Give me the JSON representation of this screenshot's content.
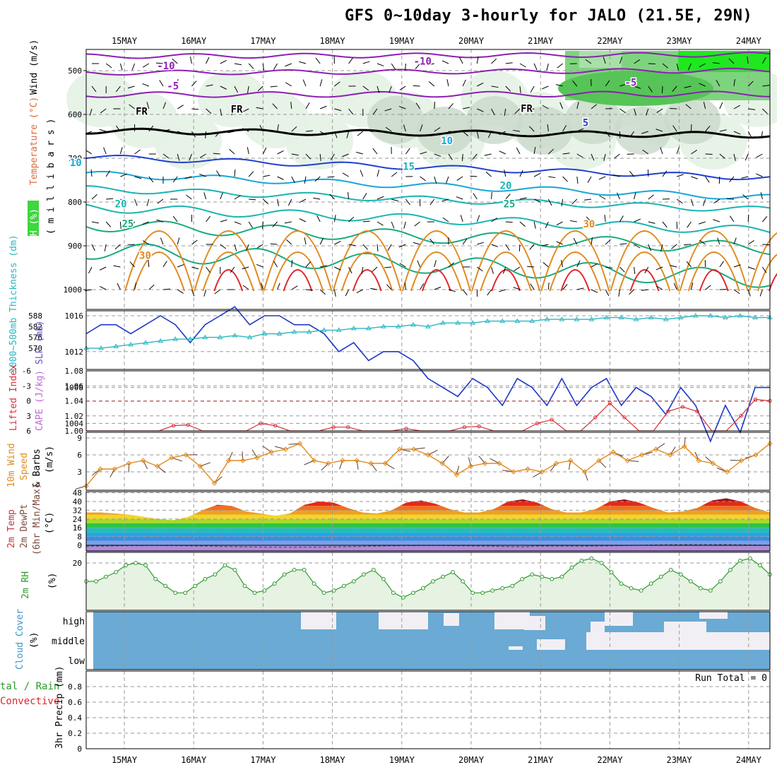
{
  "title": "GFS 0~10day 3-hourly for JALO (21.5E, 29N)",
  "dates": [
    "15MAY",
    "16MAY",
    "17MAY",
    "18MAY",
    "19MAY",
    "20MAY",
    "21MAY",
    "22MAY",
    "23MAY",
    "24MAY"
  ],
  "colors": {
    "purple": "#8c1fb4",
    "navy": "#1e3fd0",
    "cyan": "#18a6d8",
    "teal": "#19b4b4",
    "green_teal": "#18aa80",
    "orange": "#e08a1e",
    "red": "#e0262a",
    "slp": "#1d36c8",
    "thickness": "#2bb6c4",
    "li": "#d8303a",
    "wind10": "#e08a1e",
    "rh2m": "#2e9a2e",
    "cloud": "#6aaad4"
  },
  "chart_data": [
    {
      "type": "line",
      "panel": "upper-air",
      "ylabel_parts": [
        "RH (%)",
        "Temperature (°C)",
        "Wind (m/s)"
      ],
      "ylabel_units": "( m i l l i b a r s )",
      "y_ticks": [
        500,
        600,
        700,
        800,
        900,
        1000
      ],
      "ylim": [
        1000,
        450
      ],
      "contour_labels": [
        {
          "text": "-10",
          "day": 0.6,
          "p": 497,
          "color": "purple"
        },
        {
          "text": "-10",
          "day": 4.3,
          "p": 486,
          "color": "purple"
        },
        {
          "text": "-5",
          "day": 0.7,
          "p": 543,
          "color": "purple"
        },
        {
          "text": "-5",
          "day": 7.3,
          "p": 535,
          "color": "purple"
        },
        {
          "text": "FR",
          "day": 0.25,
          "p": 601,
          "color": "black"
        },
        {
          "text": "FR",
          "day": 1.62,
          "p": 596,
          "color": "black"
        },
        {
          "text": "FR",
          "day": 5.8,
          "p": 594,
          "color": "black"
        },
        {
          "text": "5",
          "day": -2.2,
          "p": 712,
          "color": "navy"
        },
        {
          "text": "5",
          "day": 6.65,
          "p": 627,
          "color": "navy"
        },
        {
          "text": "10",
          "day": -0.7,
          "p": 718,
          "color": "cyan"
        },
        {
          "text": "10",
          "day": 4.65,
          "p": 668,
          "color": "cyan"
        },
        {
          "text": "15",
          "day": 4.1,
          "p": 727,
          "color": "teal"
        },
        {
          "text": "20",
          "day": -0.05,
          "p": 812,
          "color": "teal"
        },
        {
          "text": "20",
          "day": 5.5,
          "p": 770,
          "color": "teal"
        },
        {
          "text": "25",
          "day": 0.05,
          "p": 857,
          "color": "green_teal"
        },
        {
          "text": "25",
          "day": 5.55,
          "p": 812,
          "color": "green_teal"
        },
        {
          "text": "30",
          "day": 0.3,
          "p": 930,
          "color": "orange"
        },
        {
          "text": "30",
          "day": 6.7,
          "p": 858,
          "color": "orange"
        }
      ]
    },
    {
      "type": "line",
      "panel": "slp-thickness",
      "ylabel_left": "1000~500mb Thickness (dm)",
      "ylabel_right": "SLP (mb)",
      "thickness_ticks": [
        570,
        576,
        582,
        588
      ],
      "slp_ticks": [
        1004,
        1008,
        1012,
        1016
      ],
      "slp": [
        1014,
        1015,
        1015,
        1014,
        1015,
        1016,
        1015,
        1013,
        1015,
        1016,
        1017,
        1015,
        1016,
        1016,
        1015,
        1015,
        1014,
        1012,
        1013,
        1011,
        1012,
        1012,
        1011,
        1009,
        1008,
        1007,
        1009,
        1008,
        1006,
        1009,
        1008,
        1006,
        1009,
        1006,
        1008,
        1009,
        1006,
        1008,
        1007,
        1005,
        1008,
        1006,
        1002,
        1006,
        1003,
        1008,
        1008
      ],
      "thickness": [
        570,
        570,
        571,
        572,
        573,
        574,
        575,
        575,
        576,
        576,
        577,
        576,
        578,
        578,
        579,
        579,
        580,
        580,
        581,
        581,
        582,
        582,
        583,
        582,
        584,
        584,
        584,
        585,
        585,
        585,
        585,
        586,
        586,
        586,
        586,
        587,
        587,
        586,
        587,
        586,
        587,
        588,
        588,
        587,
        588,
        587,
        587
      ]
    },
    {
      "type": "line",
      "panel": "stability",
      "ylabel_left": "Lifted Index",
      "ylabel_right": "CAPE (J/kg)",
      "li_ticks": [
        6,
        3,
        0,
        -3,
        -6
      ],
      "cape_ticks": [
        1.0,
        1.02,
        1.04,
        1.06,
        1.08
      ],
      "cape": [
        1.0,
        1.0,
        1.0,
        1.0,
        1.0,
        1.0,
        1.007,
        1.008,
        1.0,
        1.0,
        1.0,
        1.0,
        1.01,
        1.007,
        1.0,
        1.0,
        1.0,
        1.005,
        1.005,
        1.0,
        1.0,
        1.0,
        1.003,
        1.0,
        1.0,
        1.0,
        1.005,
        1.006,
        1.0,
        1.0,
        1.0,
        1.01,
        1.015,
        1.0,
        1.0,
        1.018,
        1.037,
        1.018,
        1.0,
        1.0,
        1.026,
        1.032,
        1.026,
        1.0,
        1.0,
        1.02,
        1.042,
        1.04
      ]
    },
    {
      "type": "line",
      "panel": "wind10m",
      "ylabel_parts": [
        "10m Wind",
        "Speed",
        "& Barbs",
        "(m/s)"
      ],
      "y_ticks": [
        3,
        6,
        9
      ],
      "ylim": [
        0,
        9.5
      ],
      "speed": [
        0.5,
        3.5,
        3.5,
        4.5,
        5,
        4,
        5.5,
        6,
        4,
        1,
        5,
        5,
        5.5,
        6.5,
        7,
        8,
        5,
        4.5,
        5,
        5,
        4.5,
        4.5,
        7,
        7,
        6,
        4.5,
        2.5,
        4,
        4.5,
        4.5,
        3,
        3.5,
        3,
        4.5,
        5,
        3,
        5,
        6.5,
        5,
        6,
        7,
        6,
        7.5,
        5,
        4.5,
        3,
        5,
        6,
        8
      ]
    },
    {
      "type": "area",
      "panel": "temp2m",
      "ylabel_parts": [
        "2m Temp",
        "2m DewPt",
        "(6hr Min/Max)",
        "(°C)"
      ],
      "y_ticks": [
        0,
        8,
        16,
        24,
        32,
        40,
        48
      ],
      "ylim": [
        -6,
        48
      ],
      "temp": [
        30,
        30,
        29,
        28,
        26,
        24,
        23,
        26,
        32,
        37,
        36,
        31,
        29,
        27,
        29,
        37,
        40,
        39,
        34,
        30,
        29,
        32,
        39,
        41,
        38,
        33,
        30,
        30,
        33,
        40,
        42,
        39,
        33,
        30,
        30,
        33,
        40,
        42,
        39,
        34,
        30,
        31,
        34,
        41,
        43,
        40,
        34,
        30
      ]
    },
    {
      "type": "line",
      "panel": "rh2m",
      "ylabel": "2m RH",
      "ylabel_units": "(%)",
      "y_ticks": [
        20
      ],
      "ylim": [
        0,
        28
      ],
      "rh": [
        12,
        12,
        14,
        16,
        19,
        20,
        19,
        13,
        10,
        7,
        7,
        10,
        13,
        15,
        19,
        17,
        10,
        7,
        8,
        11,
        15,
        17,
        17,
        11,
        7,
        8,
        10,
        12,
        15,
        17,
        13,
        7,
        5,
        7,
        9,
        12,
        14,
        16,
        12,
        7,
        7,
        8,
        9,
        10,
        13,
        15,
        14,
        13,
        14,
        18,
        21,
        22,
        20,
        16,
        11,
        9,
        8,
        11,
        14,
        17,
        15,
        12,
        9,
        8,
        12,
        17,
        21,
        22,
        19,
        15
      ]
    },
    {
      "type": "heatmap",
      "panel": "cloud",
      "ylabel": "Cloud Cover",
      "ylabel_units": "(%)",
      "levels": [
        "high",
        "middle",
        "low"
      ]
    },
    {
      "type": "bar",
      "panel": "precip",
      "ylabel": "3hr Precip (mm)",
      "ylabel_left_lines": [
        "tal / Rain",
        "Convective"
      ],
      "y_ticks": [
        0,
        0.2,
        0.4,
        0.6,
        0.8
      ],
      "ylim": [
        0,
        1
      ],
      "values": [],
      "annotation": "Run Total = 0"
    }
  ]
}
